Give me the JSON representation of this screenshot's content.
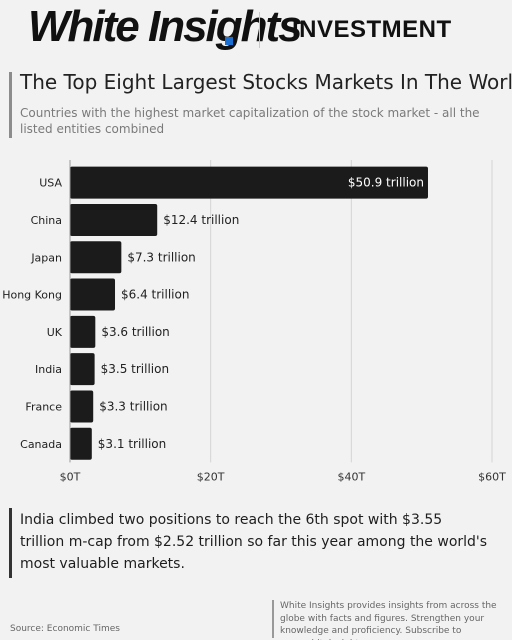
{
  "brand": {
    "name": "White Insights",
    "section": "INVESTMENT"
  },
  "title": "The Top Eight Largest Stocks Markets In The World",
  "subtitle": "Countries with the highest market capitalization of the stock market - all the listed entities combined",
  "note": "India climbed two positions to reach the 6th spot with $3.55 trillion m-cap from $2.52 trillion so far this year among the world's most valuable markets.",
  "source": "Source: Economic Times",
  "footer": "White Insights provides insights from across the globe with facts and figures. Strengthen your knowledge and proficiency. Subscribe to www.whiteinsights.com",
  "colors": {
    "bar": "#1b1b1b",
    "background": "#f2f2f2",
    "accent": "#1b6fd1"
  },
  "chart_data": {
    "type": "bar",
    "orientation": "horizontal",
    "categories": [
      "USA",
      "China",
      "Japan",
      "Hong Kong",
      "UK",
      "India",
      "France",
      "Canada"
    ],
    "values": [
      50.9,
      12.4,
      7.3,
      6.4,
      3.6,
      3.5,
      3.3,
      3.1
    ],
    "data_labels": [
      "$50.9 trillion",
      "$12.4 trillion",
      "$7.3 trillion",
      "$6.4 trillion",
      "$3.6 trillion",
      "$3.5 trillion",
      "$3.3 trillion",
      "$3.1 trillion"
    ],
    "xticks": [
      "$0T",
      "$20T",
      "$40T",
      "$60T"
    ],
    "xtick_values": [
      0,
      20,
      40,
      60
    ],
    "xlim": [
      0,
      60
    ],
    "grid": true,
    "legend": "none"
  }
}
